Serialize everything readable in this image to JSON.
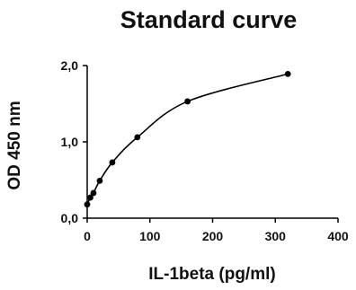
{
  "chart_data": {
    "type": "line",
    "title": "Standard curve",
    "xlabel": "IL-1beta (pg/ml)",
    "ylabel": "OD 450 nm",
    "xlim": [
      0,
      400
    ],
    "ylim": [
      0,
      2
    ],
    "x_ticks": [
      0,
      100,
      200,
      300,
      400
    ],
    "x_tick_labels": [
      "0",
      "100",
      "200",
      "300",
      "400"
    ],
    "y_ticks": [
      0,
      1,
      2
    ],
    "y_tick_labels": [
      "0,0",
      "1,0",
      "2,0"
    ],
    "grid": false,
    "legend": "none",
    "series": [
      {
        "x": [
          0,
          5,
          10,
          20,
          40,
          80,
          160,
          320
        ],
        "y": [
          0.18,
          0.27,
          0.33,
          0.49,
          0.73,
          1.06,
          1.53,
          1.89
        ],
        "color": "#000000",
        "marker": "circle"
      }
    ]
  }
}
